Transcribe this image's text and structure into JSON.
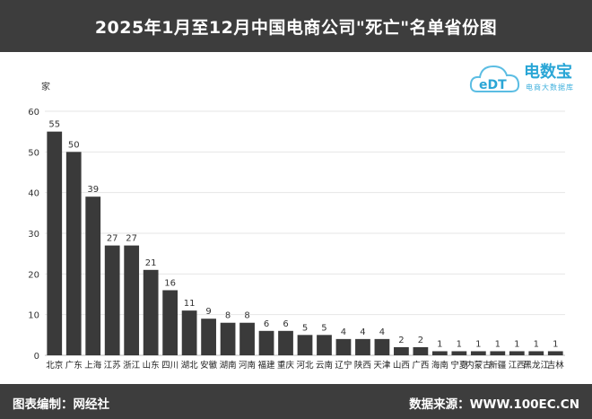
{
  "header": {
    "title": "2025年1月至12月中国电商公司\"死亡\"名单省份图"
  },
  "footer": {
    "left": "图表编制：网经社",
    "right": "数据来源：WWW.100EC.CN"
  },
  "logo": {
    "brand": "电数宝",
    "tagline": "电商大数据库",
    "mark": "eDT",
    "mark_icon": "cloud-icon"
  },
  "colors": {
    "bar": "#3a3a3a",
    "header_bg": "#3d3d3d",
    "logo": "#2aa6d6"
  },
  "chart_data": {
    "type": "bar",
    "title": "",
    "xlabel": "",
    "ylabel": "家",
    "ylim": [
      0,
      60
    ],
    "yticks": [
      0,
      10,
      20,
      30,
      40,
      50,
      60
    ],
    "grid": true,
    "categories": [
      "北京",
      "广东",
      "上海",
      "江苏",
      "浙江",
      "山东",
      "四川",
      "湖北",
      "安徽",
      "湖南",
      "河南",
      "福建",
      "重庆",
      "河北",
      "云南",
      "辽宁",
      "陕西",
      "天津",
      "山西",
      "广西",
      "海南",
      "宁夏",
      "内蒙古",
      "新疆",
      "江西",
      "黑龙江",
      "吉林"
    ],
    "values": [
      55,
      50,
      39,
      27,
      27,
      21,
      16,
      11,
      9,
      8,
      8,
      6,
      6,
      5,
      5,
      4,
      4,
      4,
      2,
      2,
      1,
      1,
      1,
      1,
      1,
      1,
      1
    ]
  }
}
